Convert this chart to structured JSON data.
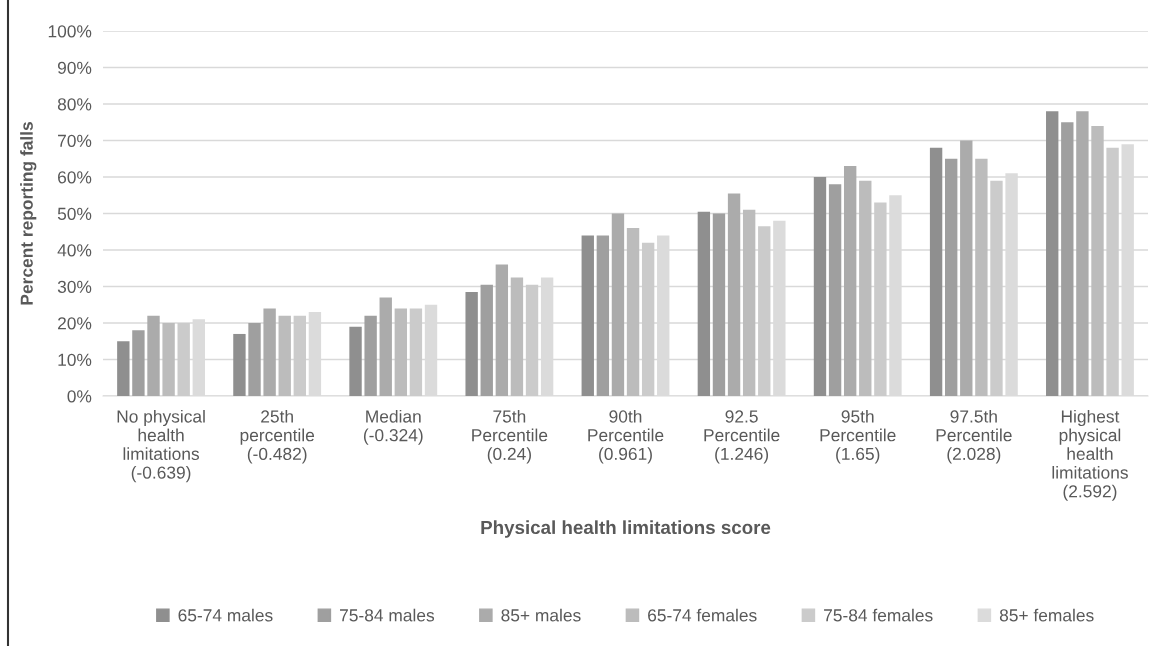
{
  "chart_data": {
    "type": "bar",
    "xlabel": "Physical health limitations score",
    "ylabel": "Percent reporting falls",
    "categories": [
      "No physical\nhealth\nlimitations\n(-0.639)",
      "25th\npercentile\n(-0.482)",
      "Median\n(-0.324)",
      "75th\nPercentile\n(0.24)",
      "90th\nPercentile\n(0.961)",
      "92.5\nPercentile\n(1.246)",
      "95th\nPercentile\n(1.65)",
      "97.5th\nPercentile\n(2.028)",
      "Highest\nphysical\nhealth\nlimitations\n(2.592)"
    ],
    "series": [
      {
        "name": "65-74 males",
        "color": "#8f8f8f",
        "values": [
          15,
          17,
          19,
          28.5,
          44,
          50.5,
          60,
          68,
          78
        ]
      },
      {
        "name": "75-84 males",
        "color": "#9f9f9f",
        "values": [
          18,
          20,
          22,
          30.5,
          44,
          50,
          58,
          65,
          75
        ]
      },
      {
        "name": "85+ males",
        "color": "#ababab",
        "values": [
          22,
          24,
          27,
          36,
          50,
          55.5,
          63,
          70,
          78
        ]
      },
      {
        "name": "65-74 females",
        "color": "#bcbcbc",
        "values": [
          20,
          22,
          24,
          32.5,
          46,
          51,
          59,
          65,
          74
        ]
      },
      {
        "name": "75-84 females",
        "color": "#cbcbcb",
        "values": [
          20,
          22,
          24,
          30.5,
          42,
          46.5,
          53,
          59,
          68
        ]
      },
      {
        "name": "85+ females",
        "color": "#dbdbdb",
        "values": [
          21,
          23,
          25,
          32.5,
          44,
          48,
          55,
          61,
          69
        ]
      }
    ],
    "ylim": [
      0,
      100
    ],
    "yticks": [
      {
        "value": 0,
        "label": "0%"
      },
      {
        "value": 10,
        "label": "10%"
      },
      {
        "value": 20,
        "label": "20%"
      },
      {
        "value": 30,
        "label": "30%"
      },
      {
        "value": 40,
        "label": "40%"
      },
      {
        "value": 50,
        "label": "50%"
      },
      {
        "value": 60,
        "label": "60%"
      },
      {
        "value": 70,
        "label": "70%"
      },
      {
        "value": 80,
        "label": "80%"
      },
      {
        "value": 90,
        "label": "90%"
      },
      {
        "value": 100,
        "label": "100%"
      }
    ],
    "grid": "y",
    "legend": "bottom"
  }
}
